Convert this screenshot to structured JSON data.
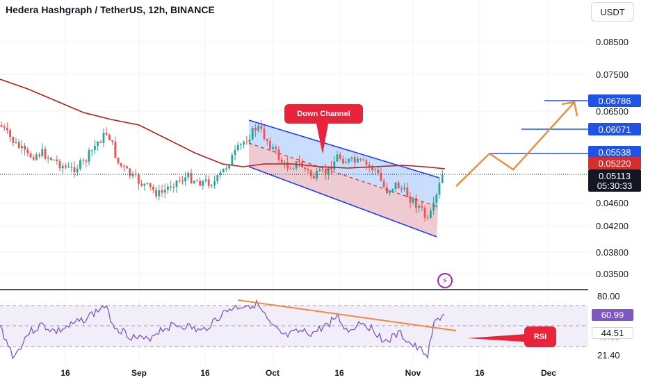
{
  "header": {
    "title": "Hedera Hashgraph / TetherUS, 12h, BINANCE",
    "currency_button": "USDT"
  },
  "price_axis": {
    "ticks": [
      "0.08500",
      "0.07500",
      "0.06500",
      "0.04600",
      "0.04200",
      "0.03800",
      "0.03500"
    ]
  },
  "price_tags": [
    {
      "label": "0.06786",
      "color": "#1e53e5"
    },
    {
      "label": "0.06071",
      "color": "#1e53e5"
    },
    {
      "label": "0.05538",
      "color": "#1e53e5"
    },
    {
      "label": "0.05220",
      "color": "#d32f2f"
    },
    {
      "label": "0.05113",
      "color": "#131722"
    },
    {
      "label": "05:30:33",
      "color": "#131722"
    }
  ],
  "time_axis": {
    "labels": [
      "16",
      "Sep",
      "16",
      "Oct",
      "16",
      "Nov",
      "16",
      "Dec"
    ]
  },
  "annotations": {
    "channel_label": "Down Channel",
    "rsi_label": "RSI"
  },
  "rsi_axis": {
    "ticks": [
      "80.00",
      "21.40"
    ],
    "current_value": "60.99",
    "ma_value": "44.51",
    "hidden_tick": "40.00"
  },
  "colors": {
    "bull": "#26a69a",
    "bear": "#ef5350",
    "ma_line": "#b71c1c",
    "channel_line": "#1e40ff",
    "projection": "#f08a3c",
    "rsi_line": "#7e57c2"
  },
  "icons": {
    "alert": "lightning-icon"
  }
}
